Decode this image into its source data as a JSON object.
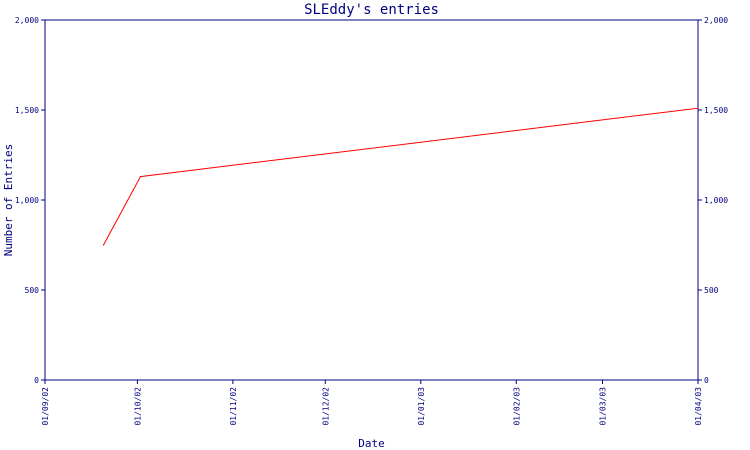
{
  "colors": {
    "axis": "#000080",
    "line": "#ff0000",
    "background": "#ffffff"
  },
  "chart_data": {
    "type": "line",
    "title": "SLEddy's entries",
    "xlabel": "Date",
    "ylabel": "Number of Entries",
    "x_tick_labels": [
      "01/09/02",
      "01/10/02",
      "01/11/02",
      "01/12/02",
      "01/01/03",
      "01/02/03",
      "01/03/03",
      "01/04/03"
    ],
    "y_tick_labels": [
      "0",
      "500",
      "1,000",
      "1,500",
      "2,000"
    ],
    "y_ticks": [
      0,
      500,
      1000,
      1500,
      2000
    ],
    "ylim": [
      0,
      2000
    ],
    "xlim": [
      "2002-09-01",
      "2003-04-01"
    ],
    "grid": false,
    "secondary_y_axis": true,
    "series": [
      {
        "values": [
          {
            "x": "2002-09-20",
            "y": 750
          },
          {
            "x": "2002-10-02",
            "y": 1130
          },
          {
            "x": "2003-04-01",
            "y": 1510
          }
        ]
      }
    ]
  }
}
